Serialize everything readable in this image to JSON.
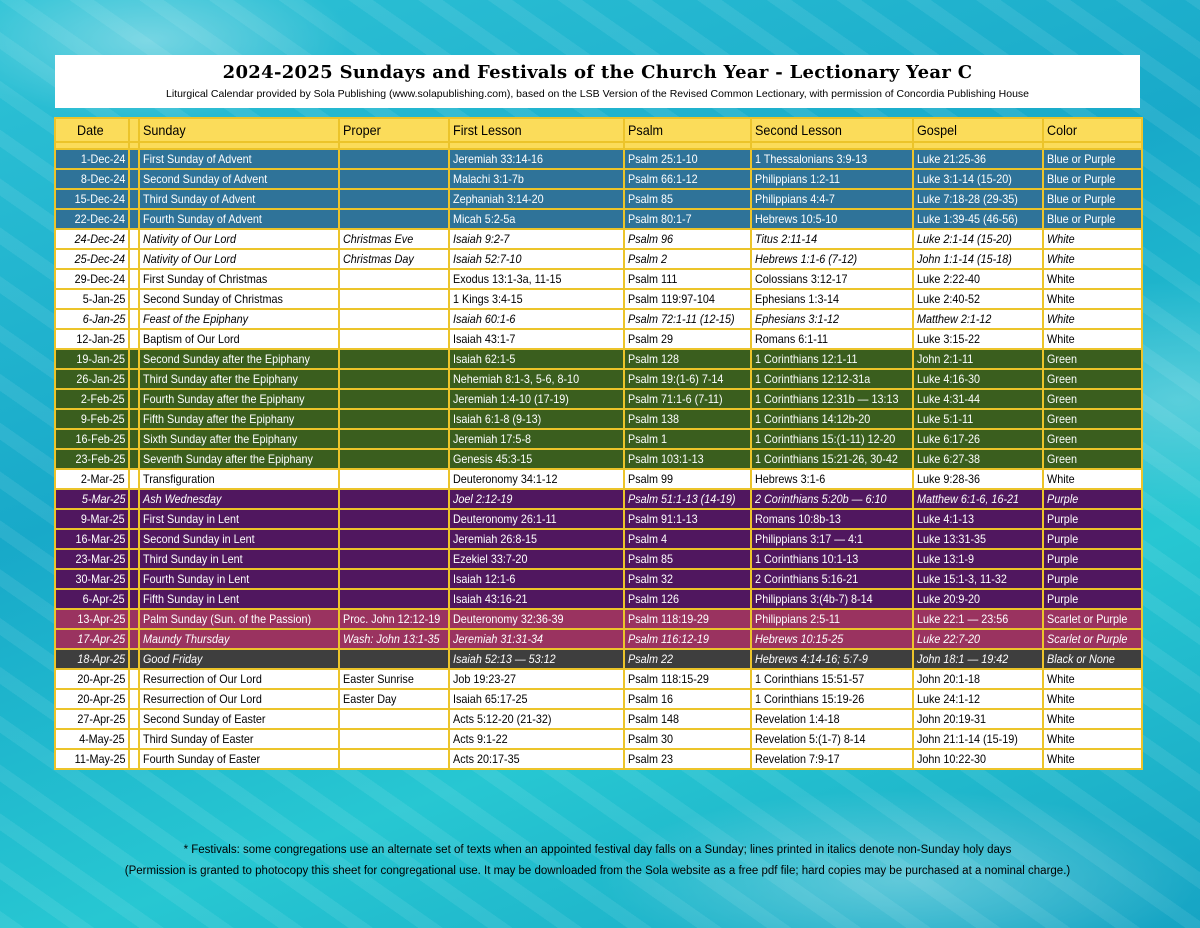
{
  "header": {
    "title": "2024-2025 Sundays and Festivals of the Church Year - Lectionary Year C",
    "subtitle": "Liturgical Calendar provided by Sola Publishing (www.solapublishing.com), based on the LSB Version of the Revised Common Lectionary, with permission of Concordia Publishing House"
  },
  "colors": {
    "blue": "#2f7399",
    "green": "#3a5e1e",
    "purple": "#50175f",
    "magenta": "#9a3360",
    "black": "#3e3e3e",
    "header": "#fbdc5a",
    "border": "#ecc42a"
  },
  "columns": [
    "Date",
    "",
    "Sunday",
    "Proper",
    "First Lesson",
    "Psalm",
    "Second Lesson",
    "Gospel",
    "Color"
  ],
  "rows": [
    {
      "style": "blue",
      "italic": false,
      "cells": [
        "1-Dec-24",
        "",
        "First Sunday of Advent",
        "",
        "Jeremiah 33:14-16",
        "Psalm 25:1-10",
        "1 Thessalonians 3:9-13",
        "Luke 21:25-36",
        "Blue or Purple"
      ]
    },
    {
      "style": "blue",
      "italic": false,
      "cells": [
        "8-Dec-24",
        "",
        "Second Sunday of Advent",
        "",
        "Malachi 3:1-7b",
        "Psalm 66:1-12",
        "Philippians 1:2-11",
        "Luke 3:1-14 (15-20)",
        "Blue or Purple"
      ]
    },
    {
      "style": "blue",
      "italic": false,
      "cells": [
        "15-Dec-24",
        "",
        "Third Sunday of Advent",
        "",
        "Zephaniah 3:14-20",
        "Psalm 85",
        "Philippians 4:4-7",
        "Luke 7:18-28 (29-35)",
        "Blue or Purple"
      ]
    },
    {
      "style": "blue",
      "italic": false,
      "cells": [
        "22-Dec-24",
        "",
        "Fourth Sunday of Advent",
        "",
        "Micah 5:2-5a",
        "Psalm 80:1-7",
        "Hebrews 10:5-10",
        "Luke 1:39-45 (46-56)",
        "Blue or Purple"
      ]
    },
    {
      "style": "white",
      "italic": true,
      "cells": [
        "24-Dec-24",
        "",
        "Nativity of Our Lord",
        "Christmas Eve",
        "Isaiah 9:2-7",
        "Psalm 96",
        "Titus 2:11-14",
        "Luke 2:1-14 (15-20)",
        "White"
      ]
    },
    {
      "style": "white",
      "italic": true,
      "cells": [
        "25-Dec-24",
        "",
        "Nativity of Our Lord",
        "Christmas Day",
        "Isaiah 52:7-10",
        "Psalm 2",
        "Hebrews 1:1-6 (7-12)",
        "John 1:1-14 (15-18)",
        "White"
      ]
    },
    {
      "style": "white",
      "italic": false,
      "cells": [
        "29-Dec-24",
        "",
        "First Sunday of Christmas",
        "",
        "Exodus 13:1-3a, 11-15",
        "Psalm 111",
        "Colossians 3:12-17",
        "Luke 2:22-40",
        "White"
      ]
    },
    {
      "style": "white",
      "italic": false,
      "cells": [
        "5-Jan-25",
        "",
        "Second Sunday of Christmas",
        "",
        "1 Kings 3:4-15",
        "Psalm 119:97-104",
        "Ephesians 1:3-14",
        "Luke 2:40-52",
        "White"
      ]
    },
    {
      "style": "white",
      "italic": true,
      "cells": [
        "6-Jan-25",
        "",
        "Feast of the Epiphany",
        "",
        "Isaiah 60:1-6",
        "Psalm 72:1-11 (12-15)",
        "Ephesians 3:1-12",
        "Matthew 2:1-12",
        "White"
      ]
    },
    {
      "style": "white",
      "italic": false,
      "cells": [
        "12-Jan-25",
        "",
        "Baptism of Our Lord",
        "",
        "Isaiah 43:1-7",
        "Psalm 29",
        "Romans 6:1-11",
        "Luke 3:15-22",
        "White"
      ]
    },
    {
      "style": "green",
      "italic": false,
      "cells": [
        "19-Jan-25",
        "",
        "Second Sunday after the Epiphany",
        "",
        "Isaiah 62:1-5",
        "Psalm 128",
        "1 Corinthians 12:1-11",
        "John 2:1-11",
        "Green"
      ]
    },
    {
      "style": "green",
      "italic": false,
      "cells": [
        "26-Jan-25",
        "",
        "Third Sunday after the Epiphany",
        "",
        "Nehemiah 8:1-3, 5-6, 8-10",
        "Psalm 19:(1-6) 7-14",
        "1 Corinthians 12:12-31a",
        "Luke 4:16-30",
        "Green"
      ]
    },
    {
      "style": "green",
      "italic": false,
      "cells": [
        "2-Feb-25",
        "",
        "Fourth Sunday after the Epiphany",
        "",
        "Jeremiah 1:4-10 (17-19)",
        "Psalm 71:1-6 (7-11)",
        "1 Corinthians 12:31b — 13:13",
        "Luke 4:31-44",
        "Green"
      ]
    },
    {
      "style": "green",
      "italic": false,
      "cells": [
        "9-Feb-25",
        "",
        "Fifth Sunday after the Epiphany",
        "",
        "Isaiah 6:1-8 (9-13)",
        "Psalm 138",
        "1 Corinthians 14:12b-20",
        "Luke 5:1-11",
        "Green"
      ]
    },
    {
      "style": "green",
      "italic": false,
      "cells": [
        "16-Feb-25",
        "",
        "Sixth Sunday after the Epiphany",
        "",
        "Jeremiah 17:5-8",
        "Psalm 1",
        "1 Corinthians 15:(1-11) 12-20",
        "Luke 6:17-26",
        "Green"
      ]
    },
    {
      "style": "green",
      "italic": false,
      "cells": [
        "23-Feb-25",
        "",
        "Seventh Sunday after the Epiphany",
        "",
        "Genesis 45:3-15",
        "Psalm 103:1-13",
        "1 Corinthians 15:21-26, 30-42",
        "Luke 6:27-38",
        "Green"
      ]
    },
    {
      "style": "white",
      "italic": false,
      "cells": [
        "2-Mar-25",
        "",
        "Transfiguration",
        "",
        "Deuteronomy 34:1-12",
        "Psalm 99",
        "Hebrews 3:1-6",
        "Luke 9:28-36",
        "White"
      ]
    },
    {
      "style": "purple",
      "italic": true,
      "cells": [
        "5-Mar-25",
        "",
        "Ash Wednesday",
        "",
        "Joel 2:12-19",
        "Psalm 51:1-13 (14-19)",
        "2 Corinthians 5:20b — 6:10",
        "Matthew 6:1-6, 16-21",
        "Purple"
      ]
    },
    {
      "style": "purple",
      "italic": false,
      "cells": [
        "9-Mar-25",
        "",
        "First Sunday in Lent",
        "",
        "Deuteronomy 26:1-11",
        "Psalm 91:1-13",
        "Romans 10:8b-13",
        "Luke 4:1-13",
        "Purple"
      ]
    },
    {
      "style": "purple",
      "italic": false,
      "cells": [
        "16-Mar-25",
        "",
        "Second Sunday in Lent",
        "",
        "Jeremiah 26:8-15",
        "Psalm 4",
        "Philippians 3:17 — 4:1",
        "Luke 13:31-35",
        "Purple"
      ]
    },
    {
      "style": "purple",
      "italic": false,
      "cells": [
        "23-Mar-25",
        "",
        "Third Sunday in Lent",
        "",
        "Ezekiel 33:7-20",
        "Psalm 85",
        "1 Corinthians 10:1-13",
        "Luke 13:1-9",
        "Purple"
      ]
    },
    {
      "style": "purple",
      "italic": false,
      "cells": [
        "30-Mar-25",
        "",
        "Fourth Sunday in Lent",
        "",
        "Isaiah 12:1-6",
        "Psalm 32",
        "2 Corinthians 5:16-21",
        "Luke 15:1-3, 11-32",
        "Purple"
      ]
    },
    {
      "style": "purple",
      "italic": false,
      "cells": [
        "6-Apr-25",
        "",
        "Fifth Sunday in Lent",
        "",
        "Isaiah 43:16-21",
        "Psalm 126",
        "Philippians 3:(4b-7) 8-14",
        "Luke 20:9-20",
        "Purple"
      ]
    },
    {
      "style": "magenta",
      "italic": false,
      "cells": [
        "13-Apr-25",
        "",
        "Palm Sunday (Sun. of the Passion)",
        "Proc. John 12:12-19",
        "Deuteronomy 32:36-39",
        "Psalm 118:19-29",
        "Philippians 2:5-11",
        "Luke 22:1 — 23:56",
        "Scarlet or Purple"
      ]
    },
    {
      "style": "magenta",
      "italic": true,
      "cells": [
        "17-Apr-25",
        "",
        "Maundy Thursday",
        "Wash: John 13:1-35",
        "Jeremiah 31:31-34",
        "Psalm 116:12-19",
        "Hebrews 10:15-25",
        "Luke 22:7-20",
        "Scarlet or Purple"
      ]
    },
    {
      "style": "black",
      "italic": true,
      "cells": [
        "18-Apr-25",
        "",
        "Good Friday",
        "",
        "Isaiah 52:13 — 53:12",
        "Psalm 22",
        "Hebrews 4:14-16; 5:7-9",
        "John 18:1 — 19:42",
        "Black or None"
      ]
    },
    {
      "style": "white",
      "italic": false,
      "cells": [
        "20-Apr-25",
        "",
        "Resurrection of Our Lord",
        "Easter Sunrise",
        "Job 19:23-27",
        "Psalm 118:15-29",
        "1 Corinthians 15:51-57",
        "John 20:1-18",
        "White"
      ]
    },
    {
      "style": "white",
      "italic": false,
      "cells": [
        "20-Apr-25",
        "",
        "Resurrection of Our Lord",
        "Easter Day",
        "Isaiah 65:17-25",
        "Psalm 16",
        "1 Corinthians 15:19-26",
        "Luke 24:1-12",
        "White"
      ]
    },
    {
      "style": "white",
      "italic": false,
      "cells": [
        "27-Apr-25",
        "",
        "Second Sunday of Easter",
        "",
        "Acts 5:12-20 (21-32)",
        "Psalm 148",
        "Revelation 1:4-18",
        "John 20:19-31",
        "White"
      ]
    },
    {
      "style": "white",
      "italic": false,
      "cells": [
        "4-May-25",
        "",
        "Third Sunday of Easter",
        "",
        "Acts 9:1-22",
        "Psalm 30",
        "Revelation 5:(1-7) 8-14",
        "John 21:1-14 (15-19)",
        "White"
      ]
    },
    {
      "style": "white",
      "italic": false,
      "cells": [
        "11-May-25",
        "",
        "Fourth Sunday of Easter",
        "",
        "Acts 20:17-35",
        "Psalm 23",
        "Revelation 7:9-17",
        "John 10:22-30",
        "White"
      ]
    }
  ],
  "footer": {
    "note": "* Festivals: some congregations use an alternate set of texts when an appointed festival day falls on a Sunday; lines printed in italics denote non-Sunday holy days",
    "permission": "(Permission is granted to photocopy this sheet for congregational use. It may be downloaded from the Sola website as a free pdf file; hard copies may be purchased at a nominal charge.)"
  }
}
